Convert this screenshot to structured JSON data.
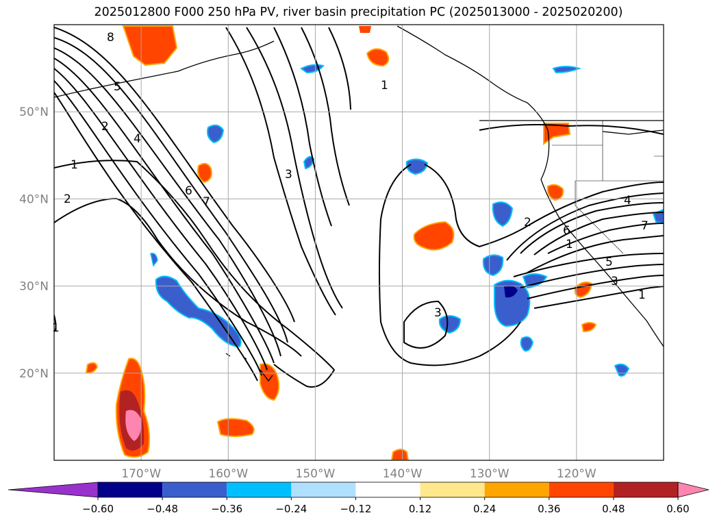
{
  "title": "2025012800 F000 250 hPa PV, river basin precipitation PC (2025013000 - 2025020200)",
  "map": {
    "lon_range": [
      -180,
      -110
    ],
    "lat_range": [
      10,
      60
    ],
    "lat_ticks": [
      {
        "value": 50,
        "label": "50°N"
      },
      {
        "value": 40,
        "label": "40°N"
      },
      {
        "value": 30,
        "label": "30°N"
      },
      {
        "value": 20,
        "label": "20°N"
      }
    ],
    "lon_ticks": [
      {
        "value": -170,
        "label": "170°W"
      },
      {
        "value": -160,
        "label": "160°W"
      },
      {
        "value": -150,
        "label": "150°W"
      },
      {
        "value": -140,
        "label": "140°W"
      },
      {
        "value": -130,
        "label": "130°W"
      },
      {
        "value": -120,
        "label": "120°W"
      }
    ],
    "grid": true,
    "pv_contour_labels": [
      "8",
      "5",
      "2",
      "4",
      "1",
      "2",
      "6",
      "7",
      "3",
      "1",
      "3",
      "2",
      "6",
      "1",
      "4",
      "7",
      "5",
      "3",
      "1",
      "1"
    ]
  },
  "colorbar": {
    "extend": "both",
    "levels": [
      "−0.60",
      "−0.48",
      "−0.36",
      "−0.24",
      "−0.12",
      "0.12",
      "0.24",
      "0.36",
      "0.48",
      "0.60"
    ],
    "colors": [
      "#9932cc",
      "#00008b",
      "#3a5fcd",
      "#00bfff",
      "#b0e0ff",
      "#ffffff",
      "#ffe88c",
      "#ffa500",
      "#ff4500",
      "#b22222",
      "#ff85b0"
    ]
  }
}
